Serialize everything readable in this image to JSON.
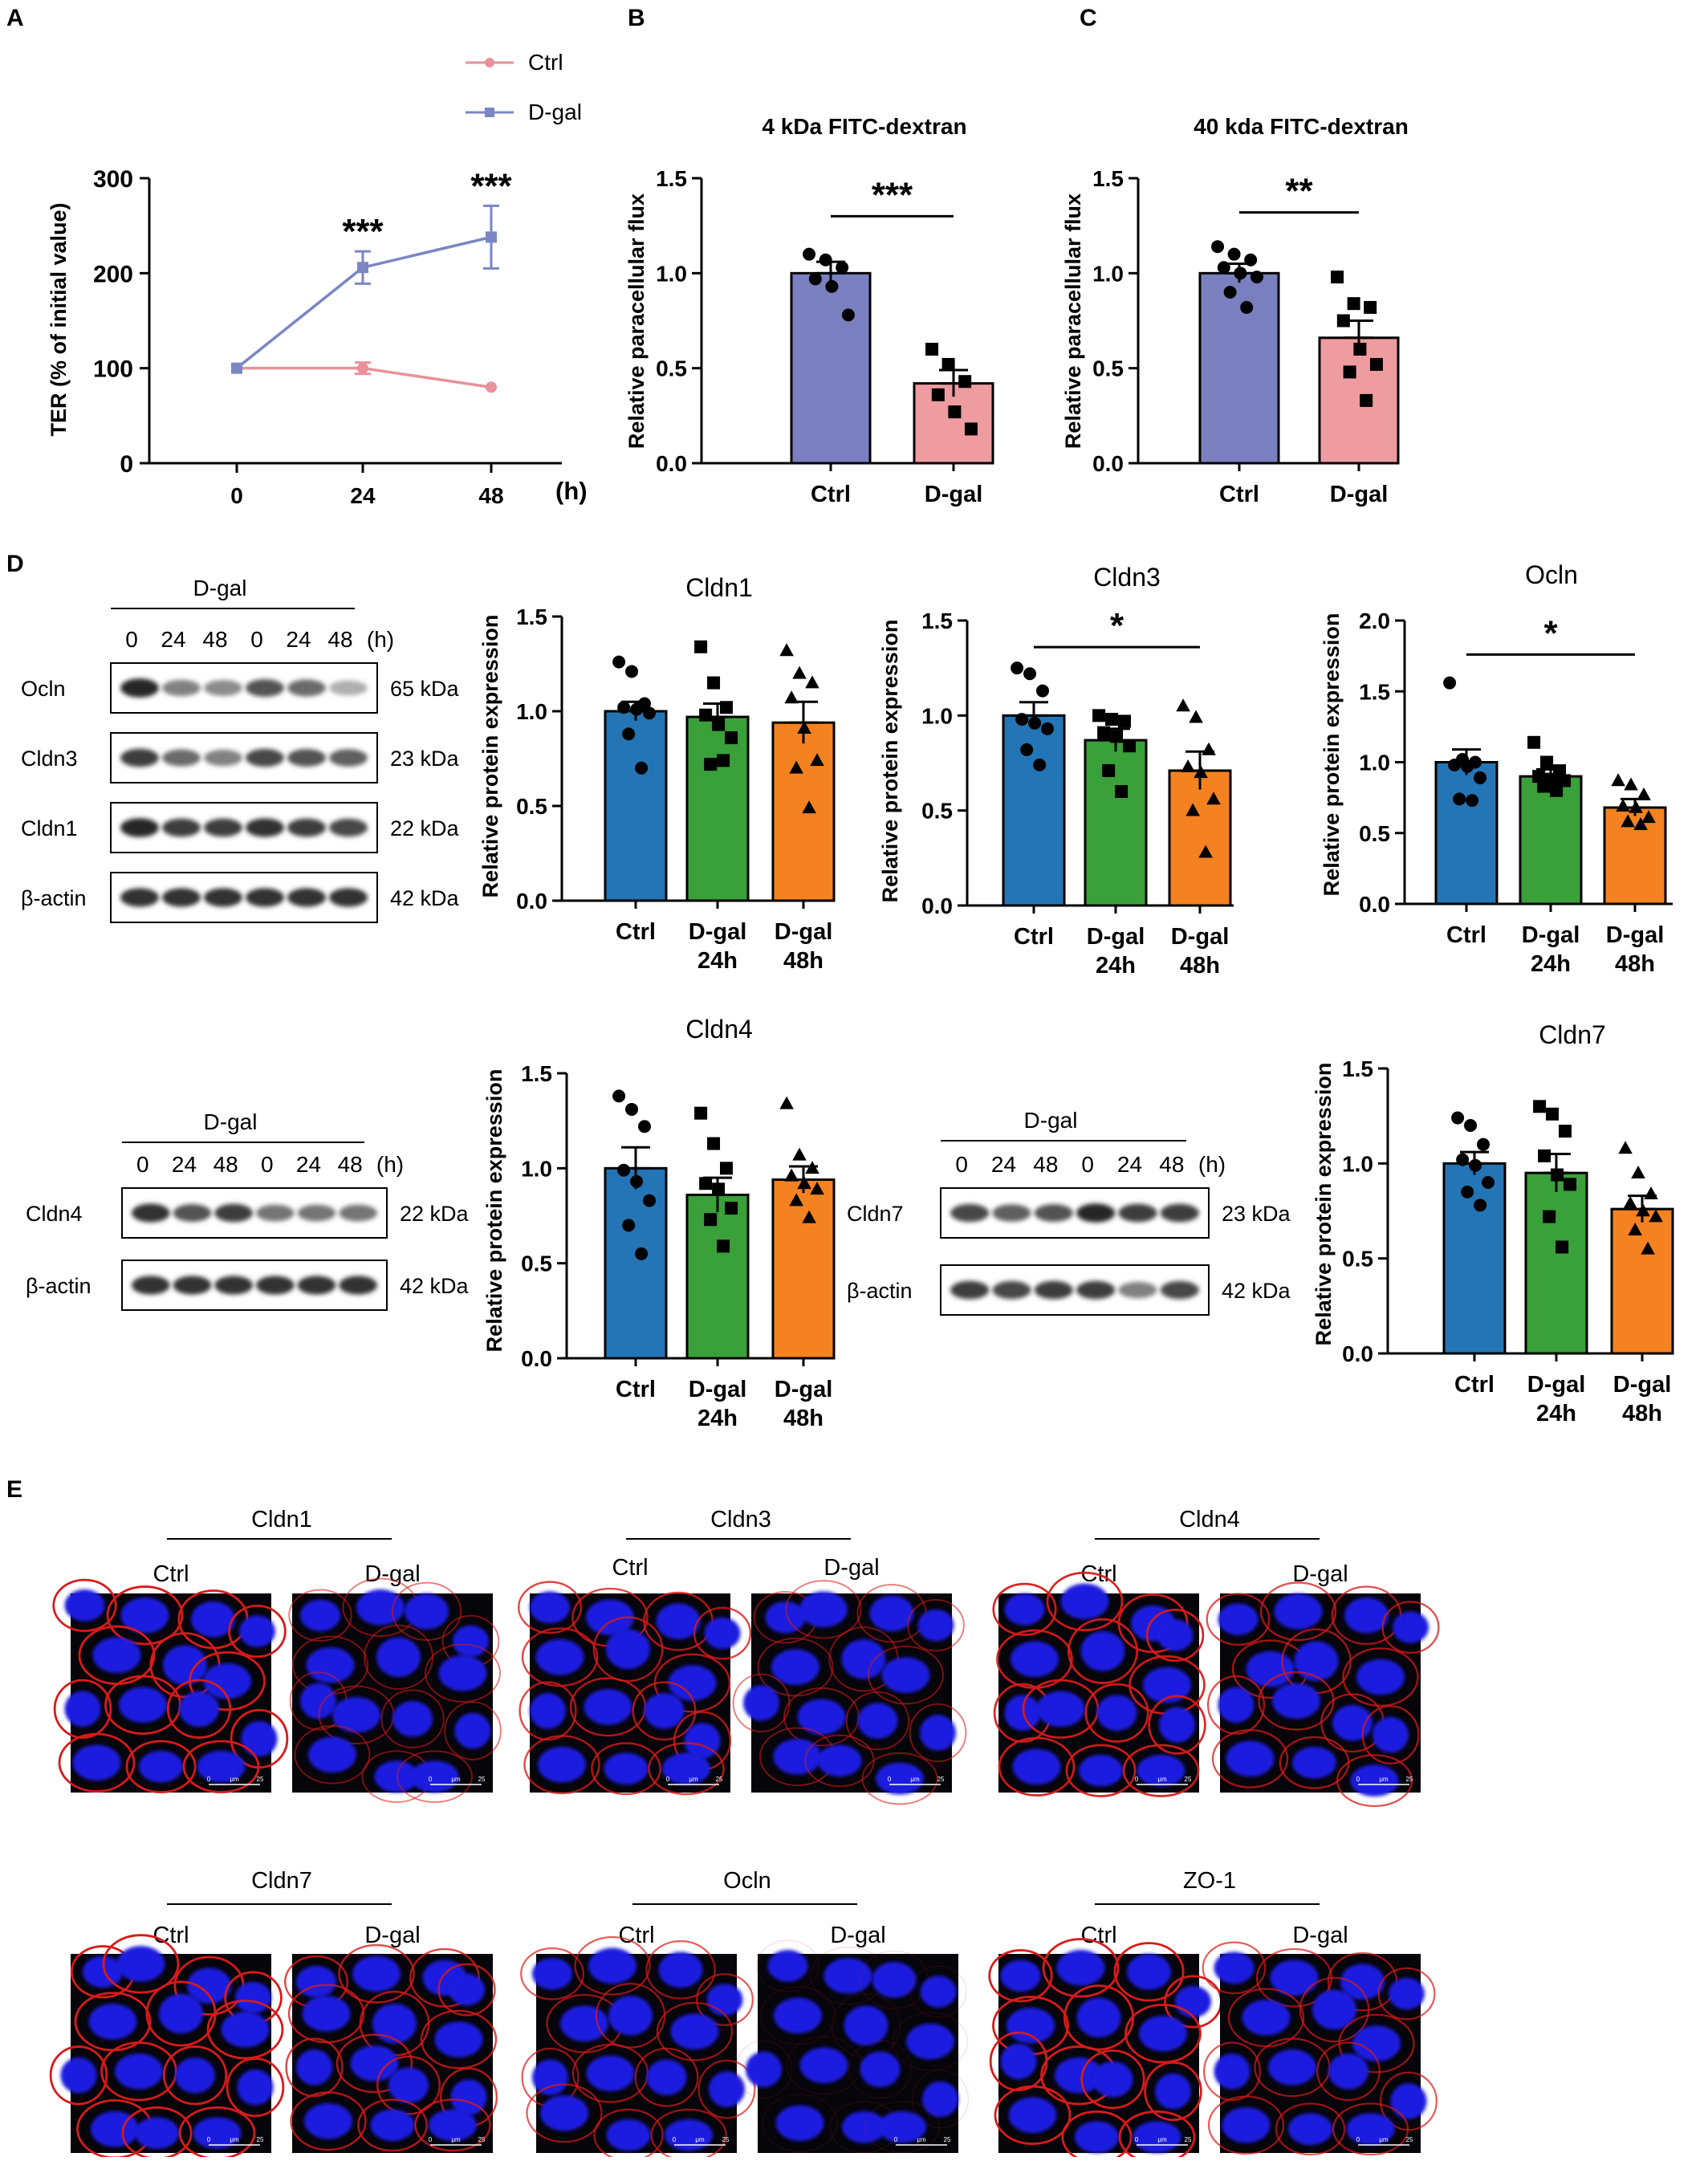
{
  "panel_labels": [
    "A",
    "B",
    "C",
    "D",
    "E"
  ],
  "colors": {
    "ctrl_line": "#E8919A",
    "dgal_line": "#7B86C4",
    "bar_ctrl_B": "#7A80BF",
    "bar_dgal_B": "#EE9CA0",
    "bar_blue": "#2475B5",
    "bar_green": "#3AA03A",
    "bar_orange": "#F58220",
    "nucleus": "#1C1CE0",
    "membrane": "#D81A1A"
  },
  "chart_data": [
    {
      "id": "A",
      "type": "line",
      "ylabel": "TER (% of initial value)",
      "xunit": "(h)",
      "x": [
        0,
        24,
        48
      ],
      "ylim": [
        0,
        300
      ],
      "yticks": [
        0,
        100,
        200,
        300
      ],
      "series": [
        {
          "name": "Ctrl",
          "marker": "circle",
          "values": [
            100,
            100,
            80
          ],
          "err": [
            0,
            6,
            0
          ]
        },
        {
          "name": "D-gal",
          "marker": "square",
          "values": [
            100,
            206,
            238
          ],
          "err": [
            0,
            17,
            33
          ]
        }
      ],
      "annotations": [
        {
          "x": 24,
          "text": "***"
        },
        {
          "x": 48,
          "text": "***"
        }
      ],
      "legend": "top"
    },
    {
      "id": "B",
      "type": "bar",
      "title": "4 kDa FITC-dextran",
      "ylabel": "Relative paracellular flux",
      "categories": [
        "Ctrl",
        "D-gal"
      ],
      "values": [
        1.0,
        0.42
      ],
      "err": [
        0.06,
        0.07
      ],
      "ylim": [
        0,
        1.5
      ],
      "yticks": [
        "0.0",
        "0.5",
        "1.0",
        "1.5"
      ],
      "points": [
        [
          1.1,
          1.07,
          1.03,
          0.97,
          0.93,
          0.78
        ],
        [
          0.6,
          0.52,
          0.43,
          0.36,
          0.27,
          0.18
        ]
      ],
      "markers": [
        "circle",
        "square"
      ],
      "sig": {
        "text": "***",
        "y": 1.3
      }
    },
    {
      "id": "C",
      "type": "bar",
      "title": "40 kda FITC-dextran",
      "ylabel": "Relative paracellular flux",
      "categories": [
        "Ctrl",
        "D-gal"
      ],
      "values": [
        1.0,
        0.66
      ],
      "err": [
        0.05,
        0.09
      ],
      "ylim": [
        0,
        1.5
      ],
      "yticks": [
        "0.0",
        "0.5",
        "1.0",
        "1.5"
      ],
      "points": [
        [
          1.14,
          1.1,
          1.07,
          1.03,
          1.0,
          0.98,
          0.9,
          0.82
        ],
        [
          0.98,
          0.84,
          0.82,
          0.75,
          0.6,
          0.52,
          0.48,
          0.33
        ]
      ],
      "markers": [
        "circle",
        "square"
      ],
      "sig": {
        "text": "**",
        "y": 1.32
      }
    },
    {
      "id": "Cldn1",
      "type": "bar",
      "title": "Cldn1",
      "ylabel": "Relative protein expression",
      "categories": [
        "Ctrl",
        "D-gal 24h",
        "D-gal 48h"
      ],
      "values": [
        1.0,
        0.97,
        0.94
      ],
      "err": [
        0.05,
        0.07,
        0.11
      ],
      "ylim": [
        0,
        1.5
      ],
      "yticks": [
        "0.0",
        "0.5",
        "1.0",
        "1.5"
      ],
      "points": [
        [
          1.26,
          1.21,
          1.04,
          1.02,
          1.01,
          0.99,
          0.88,
          0.7
        ],
        [
          1.34,
          1.15,
          1.02,
          0.98,
          0.93,
          0.86,
          0.72,
          0.74
        ],
        [
          1.32,
          1.2,
          1.15,
          1.07,
          0.91,
          0.74,
          0.7,
          0.49
        ]
      ],
      "markers": [
        "circle",
        "square",
        "triangle"
      ]
    },
    {
      "id": "Cldn3",
      "type": "bar",
      "title": "Cldn3",
      "ylabel": "Relative protein expression",
      "categories": [
        "Ctrl",
        "D-gal 24h",
        "D-gal 48h"
      ],
      "values": [
        1.0,
        0.87,
        0.71
      ],
      "err": [
        0.07,
        0.06,
        0.1
      ],
      "ylim": [
        0,
        1.5
      ],
      "yticks": [
        "0.0",
        "0.5",
        "1.0",
        "1.5"
      ],
      "points": [
        [
          1.25,
          1.22,
          1.13,
          0.98,
          0.96,
          0.93,
          0.82,
          0.74
        ],
        [
          1.0,
          0.98,
          0.97,
          0.91,
          0.89,
          0.84,
          0.71,
          0.6
        ],
        [
          1.05,
          0.99,
          0.82,
          0.73,
          0.7,
          0.56,
          0.5,
          0.28
        ]
      ],
      "markers": [
        "circle",
        "square",
        "triangle"
      ],
      "sig": {
        "text": "*",
        "y": 1.36,
        "from": 0,
        "to": 2
      }
    },
    {
      "id": "Ocln",
      "type": "bar",
      "title": "Ocln",
      "ylabel": "Relative protein expression",
      "categories": [
        "Ctrl",
        "D-gal 24h",
        "D-gal 48h"
      ],
      "values": [
        1.0,
        0.9,
        0.68
      ],
      "err": [
        0.09,
        0.05,
        0.06
      ],
      "ylim": [
        0,
        2.0
      ],
      "yticks": [
        "0.0",
        "0.5",
        "1.0",
        "1.5",
        "2.0"
      ],
      "points": [
        [
          1.56,
          1.02,
          1.0,
          0.98,
          0.97,
          0.89,
          0.74,
          0.73
        ],
        [
          1.14,
          1.0,
          0.94,
          0.9,
          0.88,
          0.87,
          0.83,
          0.8
        ],
        [
          0.87,
          0.84,
          0.77,
          0.69,
          0.68,
          0.61,
          0.58,
          0.56
        ]
      ],
      "markers": [
        "circle",
        "square",
        "triangle"
      ],
      "sig": {
        "text": "*",
        "y": 1.76,
        "from": 0,
        "to": 2
      }
    },
    {
      "id": "Cldn4",
      "type": "bar",
      "title": "Cldn4",
      "ylabel": "Relative protein expression",
      "categories": [
        "Ctrl",
        "D-gal 24h",
        "D-gal 48h"
      ],
      "values": [
        1.0,
        0.86,
        0.94
      ],
      "err": [
        0.11,
        0.09,
        0.07
      ],
      "ylim": [
        0,
        1.5
      ],
      "yticks": [
        "0.0",
        "0.5",
        "1.0",
        "1.5"
      ],
      "points": [
        [
          1.38,
          1.31,
          1.22,
          0.99,
          0.93,
          0.83,
          0.7,
          0.55
        ],
        [
          1.29,
          1.13,
          1.0,
          0.92,
          0.89,
          0.79,
          0.73,
          0.59
        ],
        [
          1.34,
          1.07,
          1.0,
          0.96,
          0.92,
          0.89,
          0.83,
          0.74
        ]
      ],
      "markers": [
        "circle",
        "square",
        "triangle"
      ]
    },
    {
      "id": "Cldn7",
      "type": "bar",
      "title": "Cldn7",
      "ylabel": "Relative protein expression",
      "categories": [
        "Ctrl",
        "D-gal 24h",
        "D-gal 48h"
      ],
      "values": [
        1.0,
        0.95,
        0.76
      ],
      "err": [
        0.06,
        0.1,
        0.07
      ],
      "ylim": [
        0,
        1.5
      ],
      "yticks": [
        "0.0",
        "0.5",
        "1.0",
        "1.5"
      ],
      "points": [
        [
          1.24,
          1.2,
          1.1,
          1.02,
          0.99,
          0.9,
          0.85,
          0.78
        ],
        [
          1.3,
          1.26,
          1.17,
          1.04,
          0.94,
          0.89,
          0.72,
          0.56
        ],
        [
          1.08,
          0.95,
          0.84,
          0.79,
          0.75,
          0.72,
          0.65,
          0.55
        ]
      ],
      "markers": [
        "circle",
        "square",
        "triangle"
      ]
    }
  ],
  "blots": [
    {
      "id": "blot1",
      "group_label": "D-gal",
      "lanes": [
        "0",
        "24",
        "48",
        "0",
        "24",
        "48",
        "(h)"
      ],
      "rows": [
        {
          "protein": "Ocln",
          "kda": "65 kDa",
          "intensity": [
            0.95,
            0.55,
            0.5,
            0.75,
            0.65,
            0.35
          ]
        },
        {
          "protein": "Cldn3",
          "kda": "23 kDa",
          "intensity": [
            0.85,
            0.65,
            0.55,
            0.8,
            0.75,
            0.7
          ]
        },
        {
          "protein": "Cldn1",
          "kda": "22 kDa",
          "intensity": [
            0.95,
            0.85,
            0.85,
            0.9,
            0.85,
            0.8
          ]
        },
        {
          "protein": "β-actin",
          "kda": "42 kDa",
          "intensity": [
            0.9,
            0.9,
            0.9,
            0.9,
            0.9,
            0.9
          ]
        }
      ]
    },
    {
      "id": "blot2",
      "group_label": "D-gal",
      "lanes": [
        "0",
        "24",
        "48",
        "0",
        "24",
        "48",
        "(h)"
      ],
      "rows": [
        {
          "protein": "Cldn4",
          "kda": "22 kDa",
          "intensity": [
            0.9,
            0.75,
            0.85,
            0.6,
            0.6,
            0.6
          ]
        },
        {
          "protein": "β-actin",
          "kda": "42 kDa",
          "intensity": [
            0.9,
            0.9,
            0.9,
            0.9,
            0.9,
            0.9
          ]
        }
      ]
    },
    {
      "id": "blot3",
      "group_label": "D-gal",
      "lanes": [
        "0",
        "24",
        "48",
        "0",
        "24",
        "48",
        "(h)"
      ],
      "rows": [
        {
          "protein": "Cldn7",
          "kda": "23 kDa",
          "intensity": [
            0.8,
            0.7,
            0.75,
            0.95,
            0.85,
            0.85
          ]
        },
        {
          "protein": "β-actin",
          "kda": "42 kDa",
          "intensity": [
            0.85,
            0.8,
            0.85,
            0.85,
            0.55,
            0.8
          ]
        }
      ]
    }
  ],
  "micrographs": [
    {
      "protein": "Cldn1",
      "conditions": [
        "Ctrl",
        "D-gal"
      ],
      "membrane_strength": [
        1.0,
        0.55
      ]
    },
    {
      "protein": "Cldn3",
      "conditions": [
        "Ctrl",
        "D-gal"
      ],
      "membrane_strength": [
        0.8,
        0.55
      ]
    },
    {
      "protein": "Cldn4",
      "conditions": [
        "Ctrl",
        "D-gal"
      ],
      "membrane_strength": [
        0.95,
        0.75
      ]
    },
    {
      "protein": "Cldn7",
      "conditions": [
        "Ctrl",
        "D-gal"
      ],
      "membrane_strength": [
        1.0,
        0.8
      ]
    },
    {
      "protein": "Ocln",
      "conditions": [
        "Ctrl",
        "D-gal"
      ],
      "membrane_strength": [
        0.7,
        0.15
      ]
    },
    {
      "protein": "ZO-1",
      "conditions": [
        "Ctrl",
        "D-gal"
      ],
      "membrane_strength": [
        1.0,
        0.7
      ]
    }
  ],
  "scalebar": {
    "labels": [
      "0",
      "μm",
      "25"
    ]
  }
}
